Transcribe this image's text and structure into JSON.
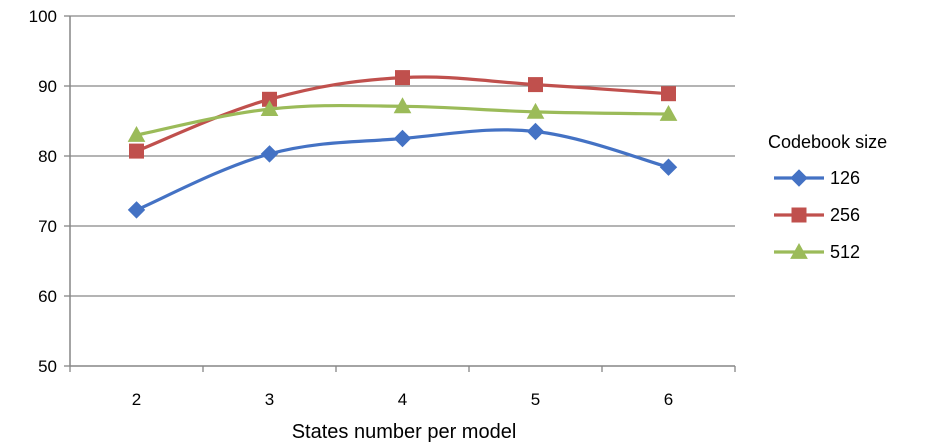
{
  "chart_data": {
    "type": "line",
    "categories": [
      "2",
      "3",
      "4",
      "5",
      "6"
    ],
    "series": [
      {
        "name": "126",
        "values": [
          72.3,
          80.3,
          82.5,
          83.5,
          78.4
        ],
        "color": "#4472c4",
        "marker": "diamond"
      },
      {
        "name": "256",
        "values": [
          80.7,
          88.1,
          91.2,
          90.2,
          88.9
        ],
        "color": "#c0504d",
        "marker": "square"
      },
      {
        "name": "512",
        "values": [
          83.0,
          86.7,
          87.1,
          86.3,
          86.0
        ],
        "color": "#9bbb59",
        "marker": "triangle"
      }
    ],
    "title": "",
    "xlabel": "States number per model",
    "ylabel": "",
    "ylim": [
      50,
      100
    ],
    "yticks": [
      50,
      60,
      70,
      80,
      90,
      100
    ],
    "grid": true,
    "legend_title": "Codebook size",
    "legend_position": "right"
  }
}
